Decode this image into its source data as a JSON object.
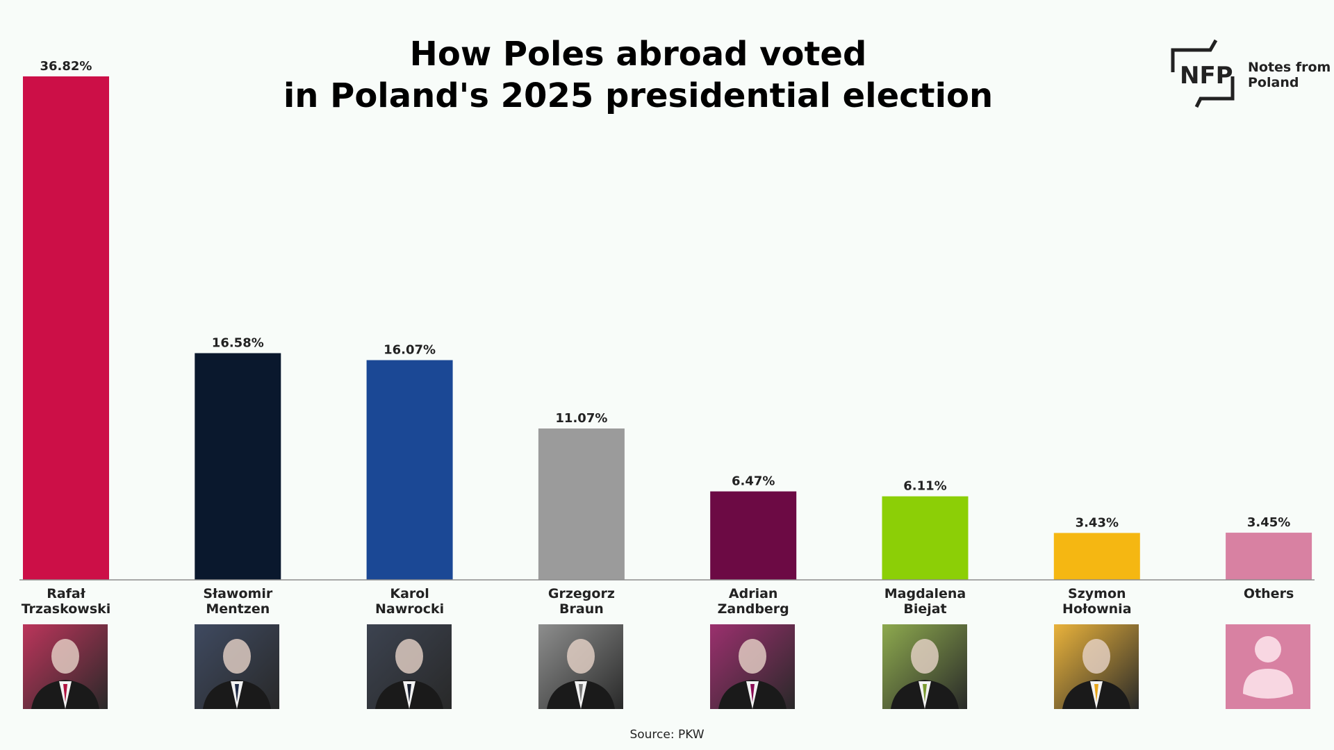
{
  "chart_data": {
    "type": "bar",
    "title": "How Poles abroad voted in Poland's 2025 presidential election",
    "title_lines": [
      "How Poles abroad voted",
      "in Poland's 2025 presidential election"
    ],
    "categories": [
      [
        "Rafał",
        "Trzaskowski"
      ],
      [
        "Sławomir",
        "Mentzen"
      ],
      [
        "Karol",
        "Nawrocki"
      ],
      [
        "Grzegorz",
        "Braun"
      ],
      [
        "Adrian",
        "Zandberg"
      ],
      [
        "Magdalena",
        "Biejat"
      ],
      [
        "Szymon",
        "Hołownia"
      ],
      [
        "Others"
      ]
    ],
    "values": [
      36.82,
      16.58,
      16.07,
      11.07,
      6.47,
      6.11,
      3.43,
      3.45
    ],
    "value_labels": [
      "36.82%",
      "16.58%",
      "16.07%",
      "11.07%",
      "6.47%",
      "6.11%",
      "3.43%",
      "3.45%"
    ],
    "colors": [
      "#cc0f47",
      "#0a182d",
      "#1b4895",
      "#9b9b9b",
      "#6c0a44",
      "#8ccf06",
      "#f5b712",
      "#d881a2"
    ],
    "ylim": [
      0,
      36.82
    ],
    "grid": false,
    "legend": "none"
  },
  "logo": {
    "mark": "NFP",
    "text_lines": [
      "Notes from",
      "Poland"
    ]
  },
  "source": "Source: PKW",
  "photo_icons": [
    "portrait-photo",
    "portrait-photo",
    "portrait-photo",
    "portrait-photo",
    "portrait-photo",
    "portrait-photo",
    "portrait-photo",
    "person-silhouette-icon"
  ],
  "photo_tints": [
    "#b0123f",
    "#1e2a45",
    "#1b2232",
    "#7a7a7a",
    "#8a0c55",
    "#7a9a30",
    "#e6a51a",
    "#d881a2"
  ]
}
